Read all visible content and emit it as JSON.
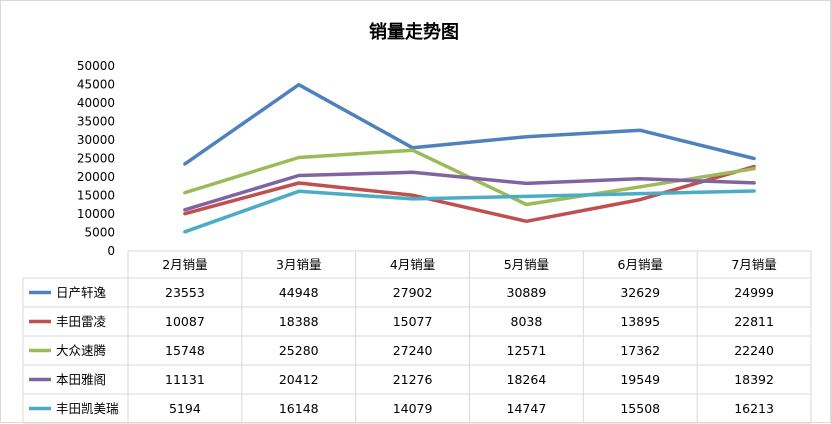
{
  "chart_data": {
    "type": "line",
    "title": "销量走势图",
    "xlabel": "",
    "ylabel": "",
    "categories": [
      "2月销量",
      "3月销量",
      "4月销量",
      "5月销量",
      "6月销量",
      "7月销量"
    ],
    "ylim": [
      0,
      50000
    ],
    "yticks": [
      0,
      5000,
      10000,
      15000,
      20000,
      25000,
      30000,
      35000,
      40000,
      45000,
      50000
    ],
    "grid": false,
    "legend": "data-table",
    "series": [
      {
        "name": "日产轩逸",
        "color": "#4f81bd",
        "values": [
          23553,
          44948,
          27902,
          30889,
          32629,
          24999
        ]
      },
      {
        "name": "丰田雷凌",
        "color": "#c0504d",
        "values": [
          10087,
          18388,
          15077,
          8038,
          13895,
          22811
        ]
      },
      {
        "name": "大众速腾",
        "color": "#9bbb59",
        "values": [
          15748,
          25280,
          27240,
          12571,
          17362,
          22240
        ]
      },
      {
        "name": "本田雅阁",
        "color": "#8064a2",
        "values": [
          11131,
          20412,
          21276,
          18264,
          19549,
          18392
        ]
      },
      {
        "name": "丰田凯美瑞",
        "color": "#4bacc6",
        "values": [
          5194,
          16148,
          14079,
          14747,
          15508,
          16213
        ]
      }
    ]
  }
}
